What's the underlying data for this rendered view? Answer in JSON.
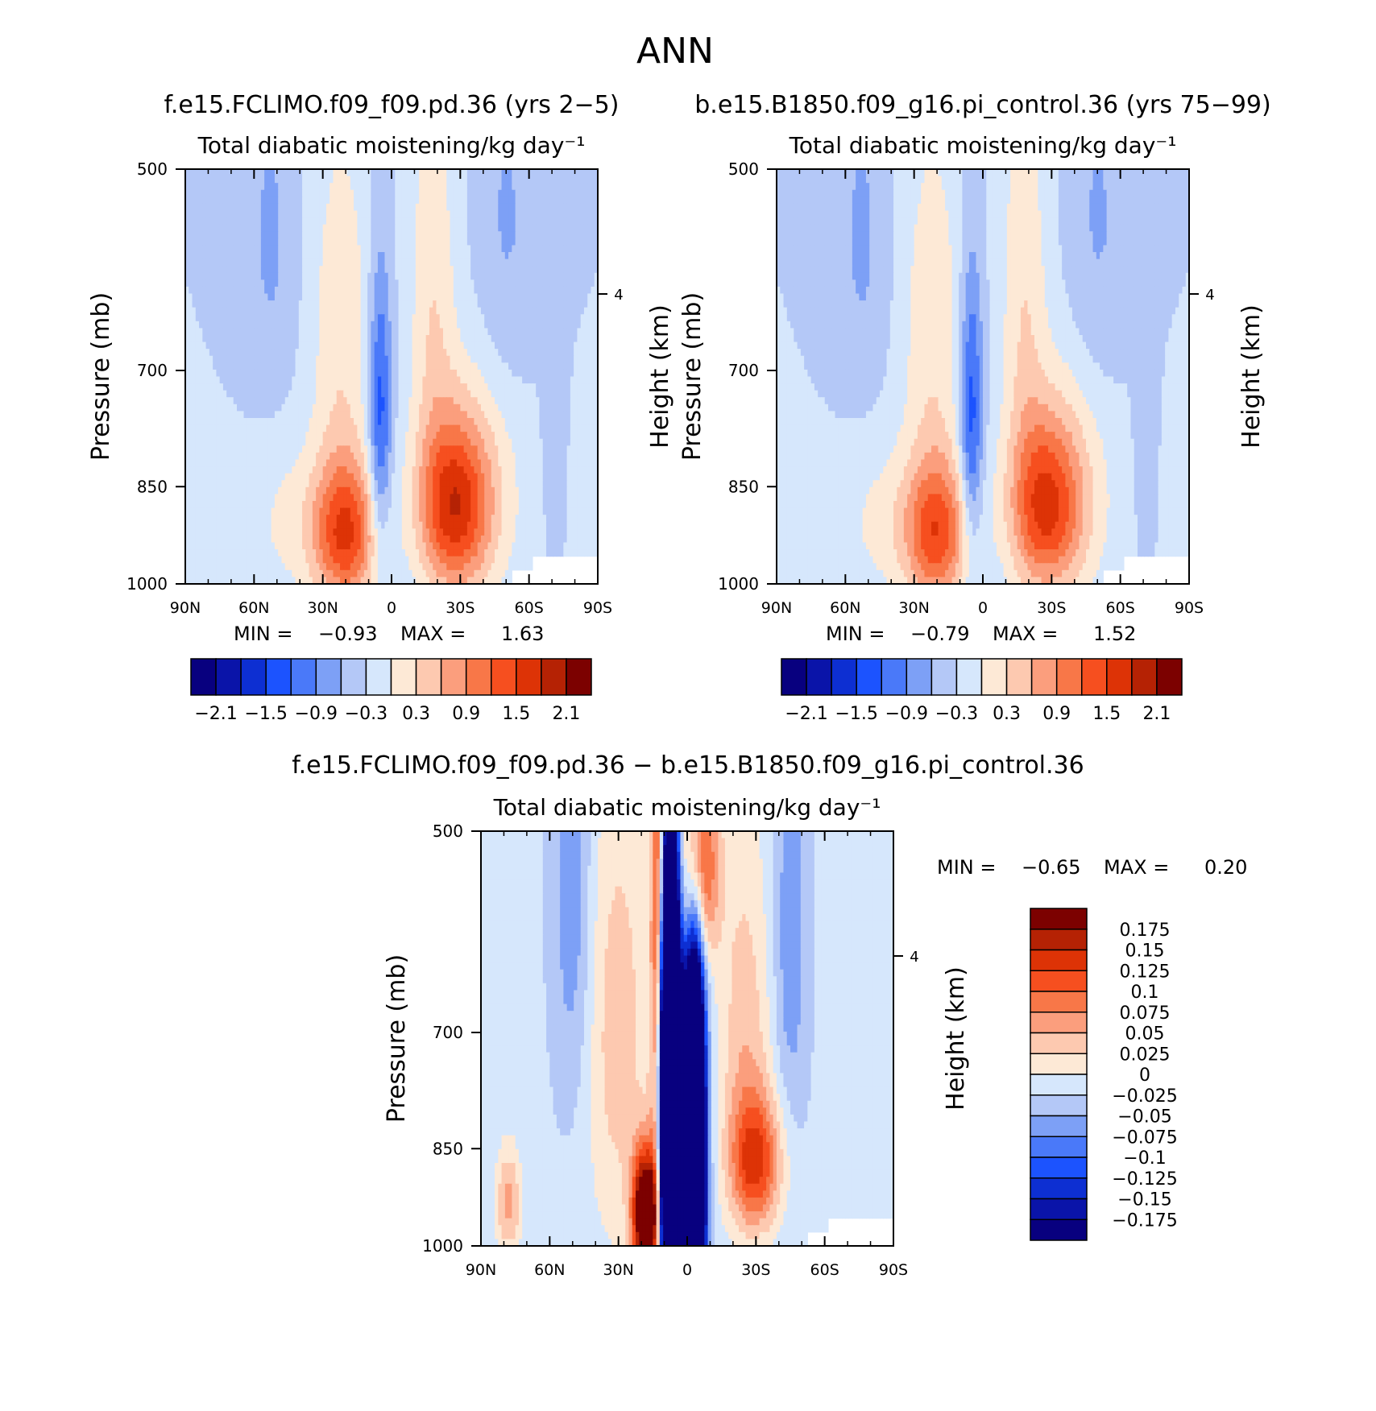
{
  "figure": {
    "title": "ANN"
  },
  "chart_data": [
    {
      "type": "heatmap",
      "id": "panel-model",
      "case_title": "f.e15.FCLIMO.f09_f09.pd.36 (yrs 2−5)",
      "title": "Total diabatic moistening/kg day⁻¹",
      "xlabel": "",
      "ylabel": "Pressure (mb)",
      "y2label": "Height (km)",
      "x_ticks": [
        "90N",
        "60N",
        "30N",
        "0",
        "30S",
        "60S",
        "90S"
      ],
      "y_ticks": [
        "500",
        "700",
        "850",
        "1000"
      ],
      "y2_ticks": [
        "4"
      ],
      "ylim": [
        1000,
        500
      ],
      "min_label": "MIN =",
      "min_value": "−0.93",
      "max_label": "MAX =",
      "max_value": "1.63",
      "colorbar": {
        "orientation": "horizontal",
        "labels": [
          "−2.1",
          "−1.5",
          "−0.9",
          "−0.3",
          "0.3",
          "0.9",
          "1.5",
          "2.1"
        ]
      },
      "features": [
        {
          "lat": -35,
          "pressure": 860,
          "value": 1.5
        },
        {
          "lat": 22,
          "pressure": 900,
          "value": 1.4
        },
        {
          "lat": 5,
          "pressure": 750,
          "value": -0.93
        },
        {
          "lat": 55,
          "pressure": 560,
          "value": -0.5
        },
        {
          "lat": -48,
          "pressure": 570,
          "value": -0.5
        },
        {
          "lat": -20,
          "pressure": 620,
          "value": 0.2
        }
      ]
    },
    {
      "type": "heatmap",
      "id": "panel-control",
      "case_title": "b.e15.B1850.f09_g16.pi_control.36 (yrs 75−99)",
      "title": "Total diabatic moistening/kg day⁻¹",
      "xlabel": "",
      "ylabel": "Pressure (mb)",
      "y2label": "Height (km)",
      "x_ticks": [
        "90N",
        "60N",
        "30N",
        "0",
        "30S",
        "60S",
        "90S"
      ],
      "y_ticks": [
        "500",
        "700",
        "850",
        "1000"
      ],
      "y2_ticks": [
        "4"
      ],
      "ylim": [
        1000,
        500
      ],
      "min_label": "MIN =",
      "min_value": "−0.79",
      "max_label": "MAX =",
      "max_value": "1.52",
      "colorbar": {
        "orientation": "horizontal",
        "labels": [
          "−2.1",
          "−1.5",
          "−0.9",
          "−0.3",
          "0.3",
          "0.9",
          "1.5",
          "2.1"
        ]
      },
      "features": [
        {
          "lat": -35,
          "pressure": 860,
          "value": 1.45
        },
        {
          "lat": 20,
          "pressure": 900,
          "value": 1.3
        },
        {
          "lat": 5,
          "pressure": 740,
          "value": -0.79
        },
        {
          "lat": 55,
          "pressure": 580,
          "value": -0.5
        },
        {
          "lat": -48,
          "pressure": 570,
          "value": -0.5
        }
      ]
    },
    {
      "type": "heatmap",
      "id": "panel-diff",
      "case_title": "f.e15.FCLIMO.f09_f09.pd.36 − b.e15.B1850.f09_g16.pi_control.36",
      "title": "Total diabatic moistening/kg day⁻¹",
      "xlabel": "",
      "ylabel": "Pressure (mb)",
      "y2label": "Height (km)",
      "x_ticks": [
        "90N",
        "60N",
        "30N",
        "0",
        "30S",
        "60S",
        "90S"
      ],
      "y_ticks": [
        "500",
        "700",
        "850",
        "1000"
      ],
      "y2_ticks": [
        "4"
      ],
      "ylim": [
        1000,
        500
      ],
      "min_label": "MIN =",
      "min_value": "−0.65",
      "max_label": "MAX =",
      "max_value": "0.20",
      "colorbar": {
        "orientation": "vertical",
        "labels": [
          "0.175",
          "0.15",
          "0.125",
          "0.1",
          "0.075",
          "0.05",
          "0.025",
          "0",
          "−0.025",
          "−0.05",
          "−0.075",
          "−0.1",
          "−0.125",
          "−0.15",
          "−0.175"
        ]
      },
      "features": [
        {
          "lat": 8,
          "pressure": 780,
          "value": -0.65
        },
        {
          "lat": -3,
          "pressure": 850,
          "value": -0.5
        },
        {
          "lat": 18,
          "pressure": 950,
          "value": 0.2
        },
        {
          "lat": 10,
          "pressure": 530,
          "value": 0.15
        },
        {
          "lat": -30,
          "pressure": 870,
          "value": 0.12
        },
        {
          "lat": 50,
          "pressure": 560,
          "value": -0.05
        }
      ]
    }
  ],
  "colors": {
    "full_field": [
      "#08007f",
      "#0a14a9",
      "#0d2fd2",
      "#1c53fe",
      "#4a79f9",
      "#7da0f6",
      "#b4c8f7",
      "#d6e7fc",
      "#fde9d6",
      "#fdc9b0",
      "#fb9e7d",
      "#f87748",
      "#f64f1f",
      "#dd3306",
      "#b52204",
      "#7c0100"
    ],
    "difference": [
      "#08007f",
      "#0a14a9",
      "#0d2fd2",
      "#1c53fe",
      "#4a79f9",
      "#7da0f6",
      "#b4c8f7",
      "#d6e7fc",
      "#fde9d6",
      "#fdc9b0",
      "#fb9e7d",
      "#f87748",
      "#f64f1f",
      "#dd3306",
      "#b52204",
      "#7c0100"
    ]
  }
}
